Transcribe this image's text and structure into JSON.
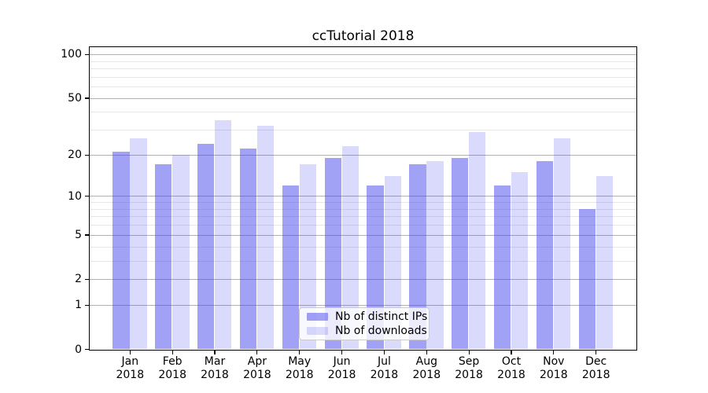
{
  "chart_data": {
    "type": "bar",
    "title": "ccTutorial 2018",
    "categories": [
      "Jan 2018",
      "Feb 2018",
      "Mar 2018",
      "Apr 2018",
      "May 2018",
      "Jun 2018",
      "Jul 2018",
      "Aug 2018",
      "Sep 2018",
      "Oct 2018",
      "Nov 2018",
      "Dec 2018"
    ],
    "series": [
      {
        "name": "Nb of distinct IPs",
        "fill": "rgba(68,68,238,0.5)",
        "values": [
          21,
          17,
          24,
          22,
          12,
          19,
          12,
          17,
          19,
          12,
          18,
          8
        ]
      },
      {
        "name": "Nb of downloads",
        "fill": "rgba(68,68,238,0.2)",
        "values": [
          26,
          20,
          35,
          32,
          17,
          23,
          14,
          18,
          29,
          15,
          26,
          14
        ]
      }
    ],
    "xlabel": "",
    "ylabel": "",
    "y_scale": "log10(value+1)",
    "ylim": [
      0,
      112
    ],
    "y_major_ticks": [
      0,
      1,
      2,
      5,
      10,
      20,
      50,
      100
    ],
    "y_minor_gridlines": [
      3,
      4,
      6,
      7,
      8,
      9,
      30,
      40,
      60,
      70,
      80,
      90
    ],
    "grid": {
      "on": true,
      "major_color": "#b0b0b0",
      "minor_color": "#e6e6e6"
    },
    "legend_position": "lower center"
  }
}
